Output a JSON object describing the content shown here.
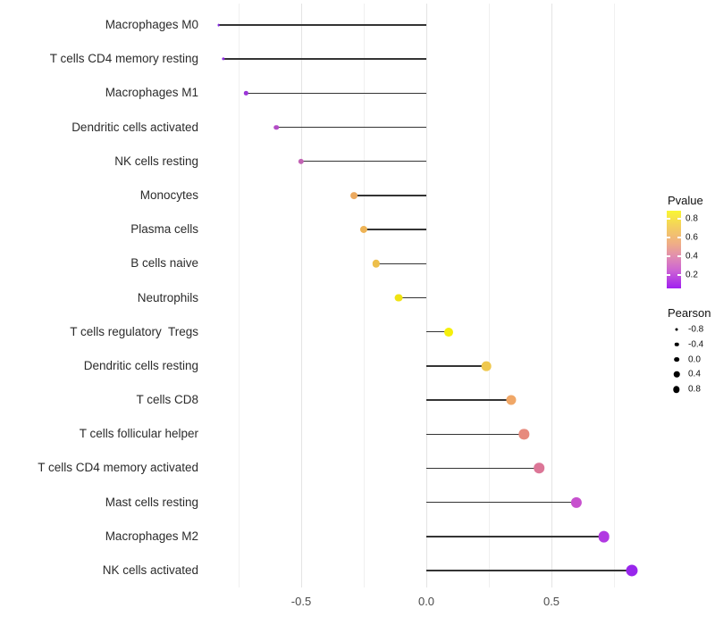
{
  "chart_data": {
    "type": "scatter",
    "variant": "lollipop",
    "title": "",
    "xlabel": "",
    "ylabel": "",
    "xlim": [
      -0.9,
      0.9
    ],
    "grid": {
      "minor_values": [
        -0.75,
        -0.25,
        0.25,
        0.75
      ],
      "major_values": [
        -0.5,
        0.0,
        0.5
      ],
      "minor_color": "#f0f0f0",
      "major_color": "#e4e4e4"
    },
    "x_ticks": [
      {
        "value": -0.5,
        "label": "-0.5"
      },
      {
        "value": 0.0,
        "label": "0.0"
      },
      {
        "value": 0.5,
        "label": "0.5"
      }
    ],
    "categories": [
      "Macrophages M0",
      "T cells CD4 memory resting",
      "Macrophages M1",
      "Dendritic cells activated",
      "NK cells resting",
      "Monocytes",
      "Plasma cells",
      "B cells naive",
      "Neutrophils",
      "T cells regulatory  Tregs",
      "Dendritic cells resting",
      "T cells CD8",
      "T cells follicular helper",
      "T cells CD4 memory activated",
      "Mast cells resting",
      "Macrophages M2",
      "NK cells activated"
    ],
    "points": [
      {
        "label": "Macrophages M0",
        "pearson": -0.83,
        "color": "#8526e2"
      },
      {
        "label": "T cells CD4 memory resting",
        "pearson": -0.81,
        "color": "#8b29df"
      },
      {
        "label": "Macrophages M1",
        "pearson": -0.72,
        "color": "#9c35d8"
      },
      {
        "label": "Dendritic cells activated",
        "pearson": -0.6,
        "color": "#b34cc6"
      },
      {
        "label": "NK cells resting",
        "pearson": -0.5,
        "color": "#c263b4"
      },
      {
        "label": "Monocytes",
        "pearson": -0.29,
        "color": "#eba95f"
      },
      {
        "label": "Plasma cells",
        "pearson": -0.25,
        "color": "#eeb355"
      },
      {
        "label": "B cells naive",
        "pearson": -0.2,
        "color": "#edbf4b"
      },
      {
        "label": "Neutrophils",
        "pearson": -0.11,
        "color": "#f0e312"
      },
      {
        "label": "T cells regulatory  Tregs",
        "pearson": 0.09,
        "color": "#f5ef0b"
      },
      {
        "label": "Dendritic cells resting",
        "pearson": 0.24,
        "color": "#efc84e"
      },
      {
        "label": "T cells CD8",
        "pearson": 0.34,
        "color": "#f0a767"
      },
      {
        "label": "T cells follicular helper",
        "pearson": 0.39,
        "color": "#e78a7d"
      },
      {
        "label": "T cells CD4 memory activated",
        "pearson": 0.45,
        "color": "#dc7697"
      },
      {
        "label": "Mast cells resting",
        "pearson": 0.6,
        "color": "#c751ce"
      },
      {
        "label": "Macrophages M2",
        "pearson": 0.71,
        "color": "#b139e2"
      },
      {
        "label": "NK cells activated",
        "pearson": 0.82,
        "color": "#9826ec"
      }
    ],
    "stem_color": "#343434",
    "legend_position": "right",
    "legend": {
      "pvalue": {
        "title": "Pvalue",
        "ticks": [
          {
            "value": 0.8,
            "label": "0.8"
          },
          {
            "value": 0.6,
            "label": "0.6"
          },
          {
            "value": 0.4,
            "label": "0.4"
          },
          {
            "value": 0.2,
            "label": "0.2"
          }
        ],
        "bar_range": [
          0.886,
          0.057
        ],
        "gradient": [
          {
            "color": "#f9f633",
            "pos": 0
          },
          {
            "color": "#f4d05e",
            "pos": 20
          },
          {
            "color": "#efae85",
            "pos": 42
          },
          {
            "color": "#e28fae",
            "pos": 58
          },
          {
            "color": "#ce66d2",
            "pos": 76
          },
          {
            "color": "#a11ff0",
            "pos": 100
          }
        ]
      },
      "pearson": {
        "title": "Pearson",
        "items": [
          {
            "value": -0.8,
            "label": "-0.8"
          },
          {
            "value": -0.4,
            "label": "-0.4"
          },
          {
            "value": 0.0,
            "label": "0.0"
          },
          {
            "value": 0.4,
            "label": "0.4"
          },
          {
            "value": 0.8,
            "label": "0.8"
          }
        ],
        "dot_color": "#000000"
      }
    }
  }
}
